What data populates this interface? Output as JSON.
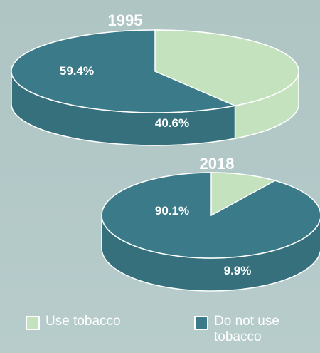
{
  "chart_data": [
    {
      "type": "pie",
      "title": "1995",
      "slices": [
        {
          "label": "Do not use tobacco",
          "value": 59.4,
          "display": "59.4%",
          "color": "#3b7a88"
        },
        {
          "label": "Use tobacco",
          "value": 40.6,
          "display": "40.6%",
          "color": "#c4e2bd"
        }
      ]
    },
    {
      "type": "pie",
      "title": "2018",
      "slices": [
        {
          "label": "Do not use tobacco",
          "value": 90.1,
          "display": "90.1%",
          "color": "#3b7a88"
        },
        {
          "label": "Use tobacco",
          "value": 9.9,
          "display": "9.9%",
          "color": "#c4e2bd"
        }
      ]
    }
  ],
  "legend": {
    "items": [
      {
        "label": "Use tobacco",
        "color": "#c4e2bd"
      },
      {
        "label": "Do not use tobacco",
        "color": "#3b7a88"
      }
    ]
  },
  "colors": {
    "teal": "#3b7a88",
    "green": "#c4e2bd",
    "edge": "#ffffff",
    "label_light": "#ffffff",
    "label_dark": "#ffffff",
    "title": "#ffffff"
  }
}
